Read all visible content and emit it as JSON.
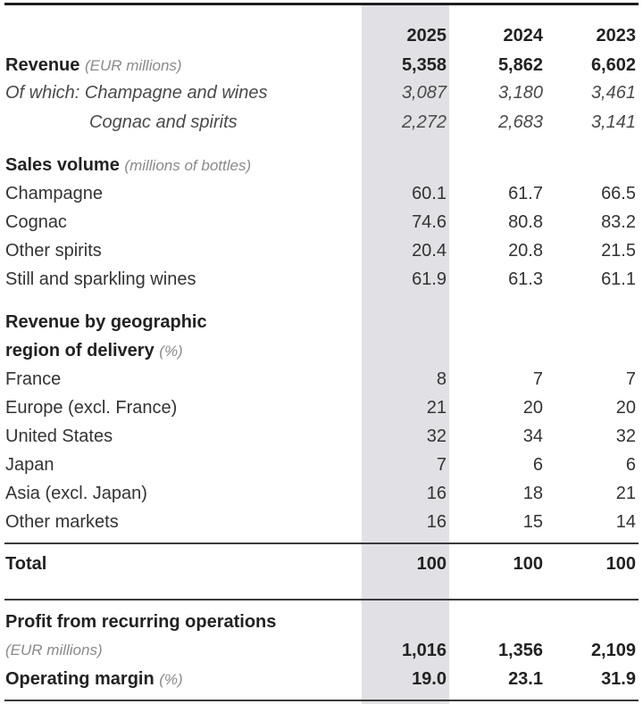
{
  "years": [
    "2025",
    "2024",
    "2023"
  ],
  "revenue": {
    "label": "Revenue",
    "unit": "(EUR millions)",
    "values": [
      "5,358",
      "5,862",
      "6,602"
    ]
  },
  "champagne_wines": {
    "label": "Of which: Champagne and wines",
    "values": [
      "3,087",
      "3,180",
      "3,461"
    ]
  },
  "cognac_spirits": {
    "label": "Cognac and spirits",
    "values": [
      "2,272",
      "2,683",
      "3,141"
    ]
  },
  "sales_volume": {
    "label": "Sales volume",
    "unit": "(millions of bottles)",
    "rows": [
      {
        "label": "Champagne",
        "values": [
          "60.1",
          "61.7",
          "66.5"
        ]
      },
      {
        "label": "Cognac",
        "values": [
          "74.6",
          "80.8",
          "83.2"
        ]
      },
      {
        "label": "Other spirits",
        "values": [
          "20.4",
          "20.8",
          "21.5"
        ]
      },
      {
        "label": "Still and sparkling wines",
        "values": [
          "61.9",
          "61.3",
          "61.1"
        ]
      }
    ]
  },
  "geo": {
    "label_line1": "Revenue by geographic",
    "label_line2": "region of delivery",
    "unit": "(%)",
    "rows": [
      {
        "label": "France",
        "values": [
          "8",
          "7",
          "7"
        ]
      },
      {
        "label": "Europe (excl. France)",
        "values": [
          "21",
          "20",
          "20"
        ]
      },
      {
        "label": "United States",
        "values": [
          "32",
          "34",
          "32"
        ]
      },
      {
        "label": "Japan",
        "values": [
          "7",
          "6",
          "6"
        ]
      },
      {
        "label": "Asia (excl. Japan)",
        "values": [
          "16",
          "18",
          "21"
        ]
      },
      {
        "label": "Other markets",
        "values": [
          "16",
          "15",
          "14"
        ]
      }
    ]
  },
  "total": {
    "label": "Total",
    "values": [
      "100",
      "100",
      "100"
    ]
  },
  "profit": {
    "label": "Profit from recurring operations",
    "unit": "(EUR millions)",
    "values": [
      "1,016",
      "1,356",
      "2,109"
    ]
  },
  "margin": {
    "label": "Operating margin",
    "unit": "(%)",
    "values": [
      "19.0",
      "23.1",
      "31.9"
    ]
  }
}
